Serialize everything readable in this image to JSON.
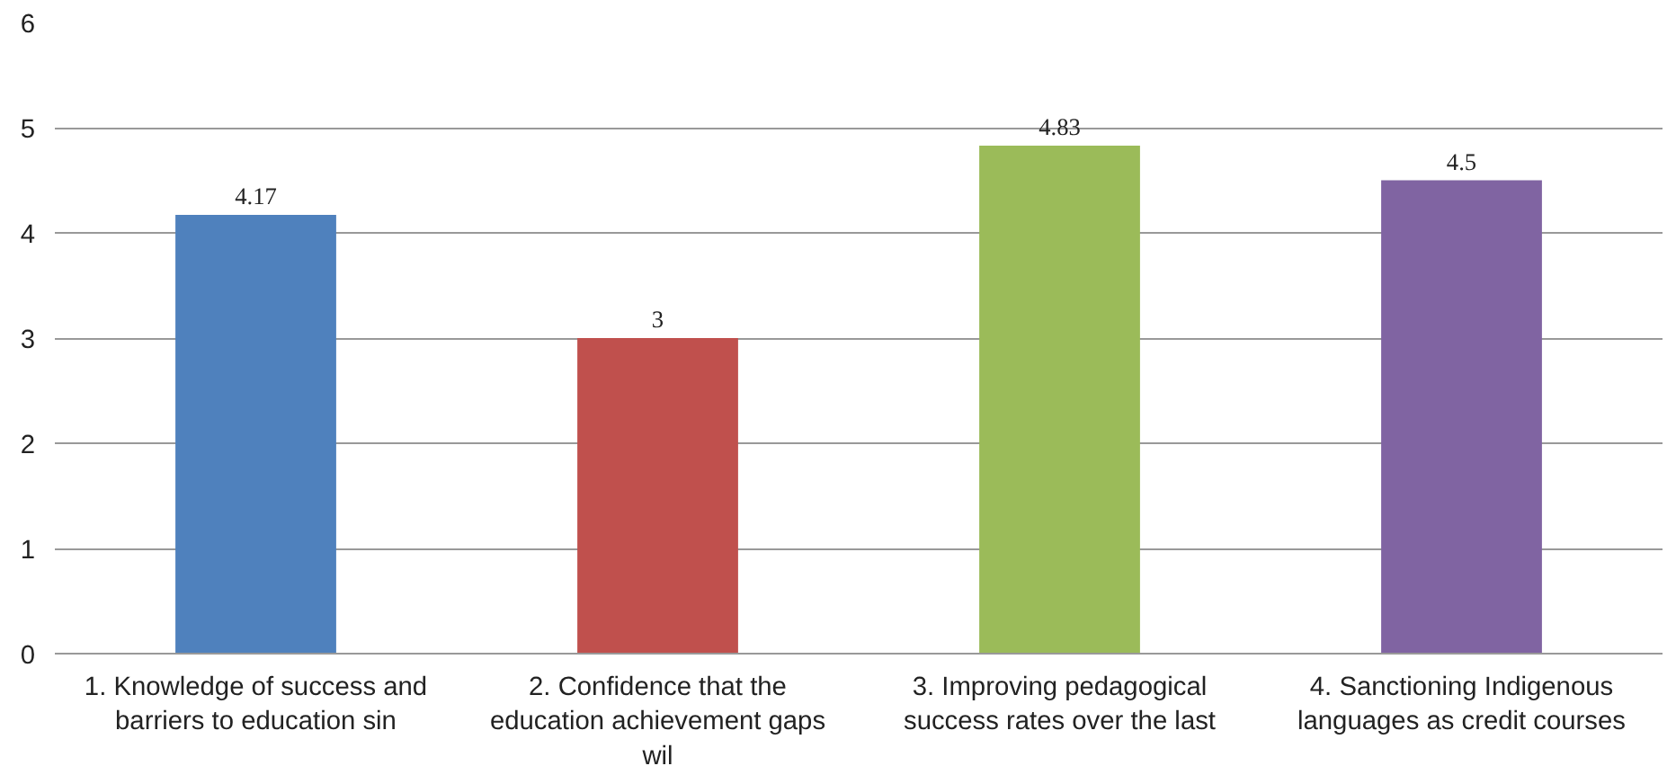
{
  "chart_data": {
    "type": "bar",
    "categories": [
      "1. Knowledge of success and barriers to education sin",
      "2. Confidence that the education achievement gaps wil",
      "3. Improving pedagogical success rates over the last",
      "4. Sanctioning Indigenous languages as credit courses"
    ],
    "values": [
      4.17,
      3,
      4.83,
      4.5
    ],
    "colors": [
      "#4f81bd",
      "#c0504d",
      "#9bbb59",
      "#8064a2"
    ],
    "ylim": [
      0,
      6
    ],
    "yticks": [
      0,
      1,
      2,
      3,
      4,
      5,
      6
    ],
    "grid": "y",
    "data_labels": true
  }
}
